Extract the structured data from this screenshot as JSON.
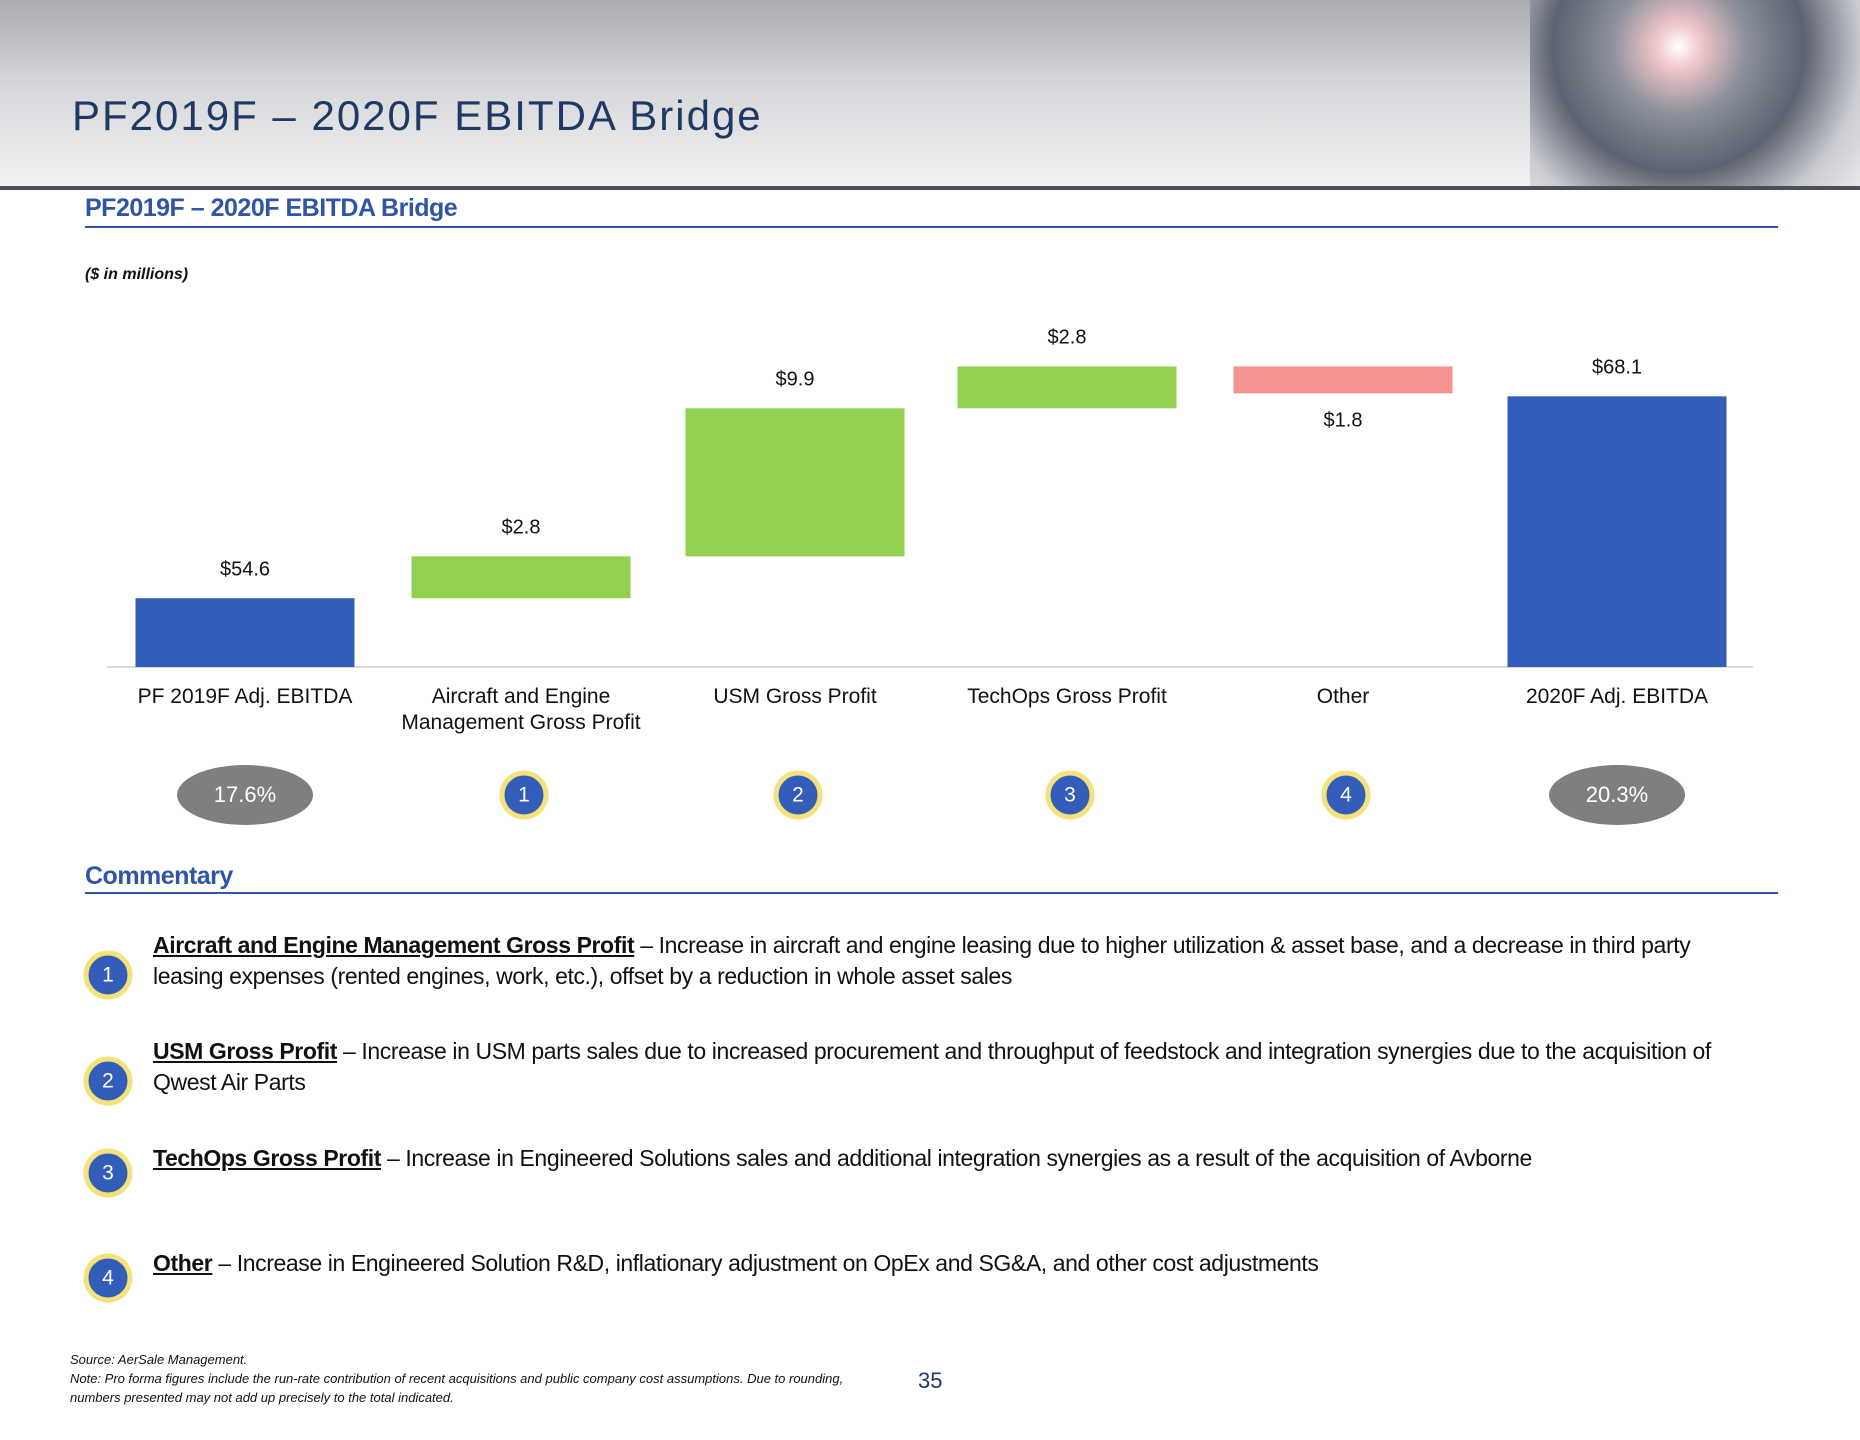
{
  "header": {
    "title": "PF2019F – 2020F EBITDA Bridge"
  },
  "section": {
    "title": "PF2019F – 2020F EBITDA Bridge",
    "units": "($ in millions)"
  },
  "chart_data": {
    "type": "waterfall",
    "categories": [
      "PF 2019F Adj. EBITDA",
      "Aircraft and Engine Management Gross Profit",
      "USM Gross Profit",
      "TechOps Gross Profit",
      "Other",
      "2020F Adj. EBITDA"
    ],
    "values": [
      54.6,
      2.8,
      9.9,
      2.8,
      -1.8,
      68.1
    ],
    "value_labels": [
      "$54.6",
      "$2.8",
      "$9.9",
      "$2.8",
      "$1.8",
      "$68.1"
    ],
    "measure": [
      "total",
      "relative",
      "relative",
      "relative",
      "relative",
      "total"
    ],
    "colors": {
      "total": "#325db9",
      "increase": "#92d050",
      "decrease": "#f4928f"
    },
    "ylim": [
      50,
      72
    ]
  },
  "badges": [
    "17.6%",
    "1",
    "2",
    "3",
    "4",
    "20.3%"
  ],
  "commentary": {
    "title": "Commentary",
    "items": [
      {
        "number": "1",
        "heading": "Aircraft and Engine Management Gross Profit",
        "text": "– Increase in aircraft and engine leasing due to higher utilization & asset base, and a decrease in third party leasing expenses (rented engines, work, etc.), offset by a reduction in whole asset sales"
      },
      {
        "number": "2",
        "heading": "USM Gross Profit",
        "text": "– Increase in USM parts sales due to increased procurement and throughput of feedstock and integration synergies due to the acquisition of Qwest Air Parts"
      },
      {
        "number": "3",
        "heading": "TechOps Gross Profit",
        "text": "– Increase in Engineered Solutions sales and additional integration synergies as a result of the acquisition of Avborne"
      },
      {
        "number": "4",
        "heading": "Other",
        "text": "– Increase in Engineered Solution R&D, inflationary adjustment on OpEx and SG&A, and other cost adjustments"
      }
    ]
  },
  "footnotes": {
    "source": "Source: AerSale Management.",
    "note": "Note: Pro forma figures include the run-rate contribution of recent acquisitions and public company cost assumptions. Due to rounding, numbers presented may not add up precisely to the total indicated."
  },
  "page_number": "35"
}
